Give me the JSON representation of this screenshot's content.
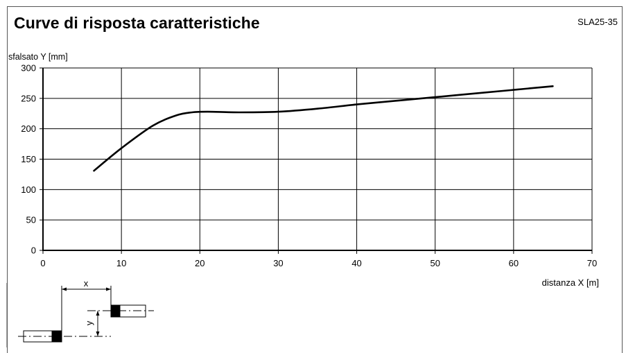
{
  "title": "Curve di risposta caratteristiche",
  "code": "SLA25-35",
  "diagram": {
    "x_label": "x",
    "y_label": "y"
  },
  "chart_data": {
    "type": "line",
    "xlabel": "distanza X [m]",
    "ylabel": "sfalsato Y [mm]",
    "xlim": [
      0,
      70
    ],
    "ylim": [
      0,
      300
    ],
    "x_ticks": [
      0,
      10,
      20,
      30,
      40,
      50,
      60,
      70
    ],
    "y_ticks": [
      0,
      50,
      100,
      150,
      200,
      250,
      300
    ],
    "grid": true,
    "series": [
      {
        "color": "#000000",
        "x": [
          6.5,
          10,
          14,
          17,
          19,
          21,
          25,
          30,
          35,
          40,
          45,
          50,
          55,
          60,
          65
        ],
        "y": [
          131,
          168,
          205,
          222,
          227,
          228,
          227,
          228,
          233,
          240,
          246,
          252,
          258,
          264,
          270
        ]
      }
    ]
  }
}
